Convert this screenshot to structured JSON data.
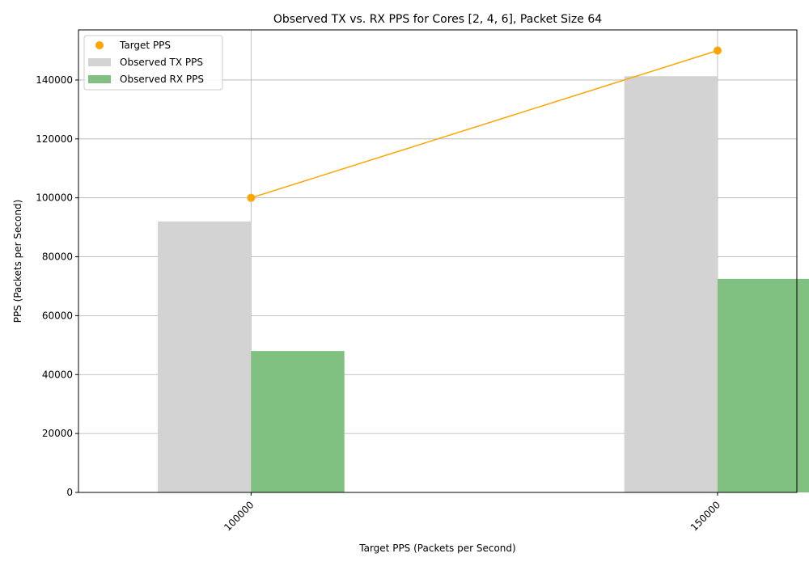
{
  "chart_data": {
    "type": "bar",
    "title": "Observed TX vs. RX PPS for Cores [2, 4, 6], Packet Size 64",
    "xlabel": "Target PPS (Packets per Second)",
    "ylabel": "PPS (Packets per Second)",
    "categories": [
      "100000",
      "150000"
    ],
    "x": [
      100000,
      150000
    ],
    "xlim": [
      81500,
      158500
    ],
    "ylim": [
      0,
      157000
    ],
    "yticks": [
      0,
      20000,
      40000,
      60000,
      80000,
      100000,
      120000,
      140000
    ],
    "grid": true,
    "legend_position": "top-left",
    "series": [
      {
        "name": "Observed TX PPS",
        "kind": "bar",
        "color": "#d3d3d3",
        "values": [
          92000,
          141300
        ]
      },
      {
        "name": "Observed RX PPS",
        "kind": "bar",
        "color": "#80c080",
        "values": [
          48000,
          72500
        ]
      },
      {
        "name": "Target PPS",
        "kind": "line",
        "color": "#ffa500",
        "values": [
          100000,
          150000
        ]
      }
    ],
    "legend_order": [
      "Target PPS",
      "Observed TX PPS",
      "Observed RX PPS"
    ]
  }
}
